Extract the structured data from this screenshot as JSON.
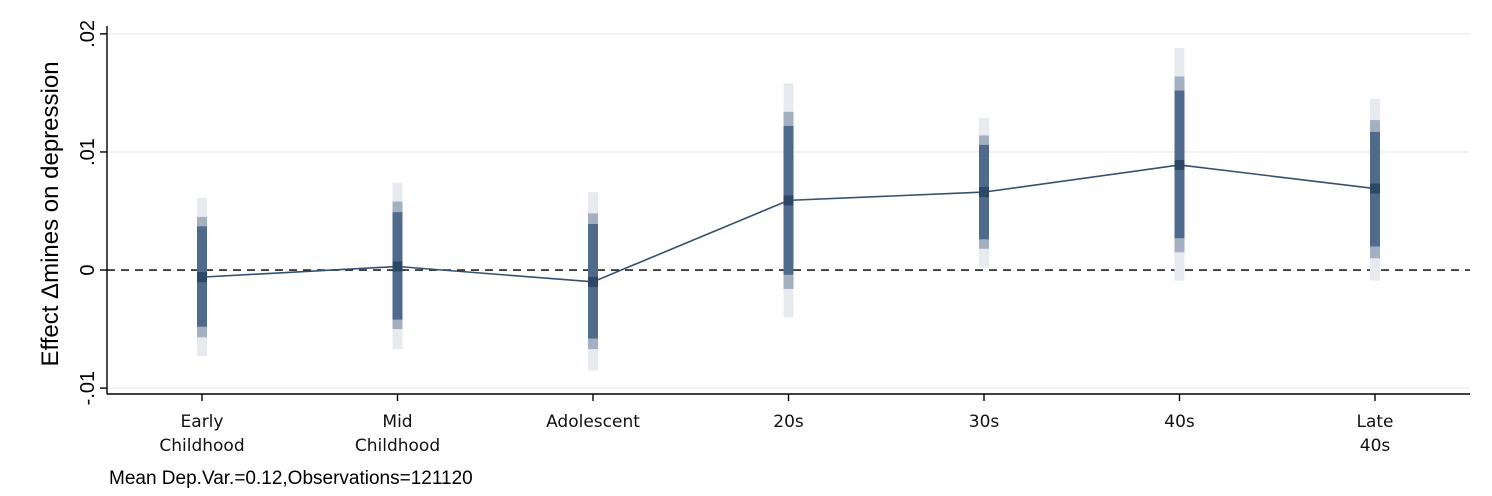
{
  "chart_data": {
    "type": "line",
    "title": "",
    "xlabel": "",
    "ylabel": "Effect Δmines on depression",
    "categories": [
      [
        "Early",
        "Childhood"
      ],
      [
        "Mid",
        "Childhood"
      ],
      [
        "Adolescent"
      ],
      [
        "20s"
      ],
      [
        "30s"
      ],
      [
        "40s"
      ],
      [
        "Late",
        "40s"
      ]
    ],
    "ylim": [
      -0.0105,
      0.0205
    ],
    "yticks": [
      {
        "value": -0.01,
        "label": "-.01"
      },
      {
        "value": 0,
        "label": "0"
      },
      {
        "value": 0.01,
        "label": ".01"
      },
      {
        "value": 0.02,
        "label": ".02"
      }
    ],
    "grid": true,
    "reference_line": {
      "value": 0,
      "style": "dashed"
    },
    "series": [
      {
        "values": [
          -0.0006,
          0.0003,
          -0.001,
          0.0059,
          0.0066,
          0.0089,
          0.0069
        ],
        "ci_bands": [
          {
            "level": "inner",
            "lower": [
              -0.0048,
              -0.0042,
              -0.0058,
              -0.0004,
              0.0026,
              0.0027,
              0.002
            ],
            "upper": [
              0.0037,
              0.0049,
              0.0039,
              0.0122,
              0.0106,
              0.0152,
              0.0117
            ]
          },
          {
            "level": "middle",
            "lower": [
              -0.0057,
              -0.005,
              -0.0067,
              -0.0016,
              0.0018,
              0.0015,
              0.001
            ],
            "upper": [
              0.0045,
              0.0058,
              0.0048,
              0.0134,
              0.0114,
              0.0164,
              0.0127
            ]
          },
          {
            "level": "outer",
            "lower": [
              -0.0073,
              -0.0067,
              -0.0085,
              -0.004,
              0.0002,
              -0.0009,
              -0.0009
            ],
            "upper": [
              0.0061,
              0.0074,
              0.0066,
              0.0158,
              0.0129,
              0.0188,
              0.0145
            ]
          }
        ]
      }
    ],
    "colors": {
      "line": "#34506f",
      "inner": "#4f6a8c",
      "middle": "#a2b0c2",
      "outer": "#e7ebf0",
      "point": "#2d4766",
      "grid": "#ececec",
      "axis": "#000000"
    },
    "footnote": "Mean Dep.Var.=0.12,Observations=121120"
  }
}
